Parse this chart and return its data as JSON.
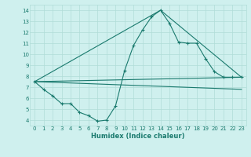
{
  "xlabel": "Humidex (Indice chaleur)",
  "background_color": "#cff0ee",
  "grid_color": "#b0ddd8",
  "line_color": "#1a7a6e",
  "xlim": [
    -0.5,
    23.5
  ],
  "ylim": [
    3.5,
    14.5
  ],
  "xticks": [
    0,
    1,
    2,
    3,
    4,
    5,
    6,
    7,
    8,
    9,
    10,
    11,
    12,
    13,
    14,
    15,
    16,
    17,
    18,
    19,
    20,
    21,
    22,
    23
  ],
  "yticks": [
    4,
    5,
    6,
    7,
    8,
    9,
    10,
    11,
    12,
    13,
    14
  ],
  "series_main": {
    "x": [
      0,
      1,
      2,
      3,
      4,
      5,
      6,
      7,
      8,
      9,
      10,
      11,
      12,
      13,
      14,
      15,
      16,
      17,
      18,
      19,
      20,
      21,
      22,
      23
    ],
    "y": [
      7.5,
      6.8,
      6.2,
      5.5,
      5.5,
      4.7,
      4.4,
      3.9,
      4.0,
      5.3,
      8.5,
      10.8,
      12.2,
      13.4,
      14.0,
      12.8,
      11.1,
      11.0,
      11.0,
      9.6,
      8.4,
      7.9,
      7.9,
      7.9
    ]
  },
  "line_flat": {
    "x": [
      0,
      23
    ],
    "y": [
      7.5,
      7.9
    ]
  },
  "line_triangle": {
    "x": [
      0,
      14,
      23
    ],
    "y": [
      7.5,
      14.0,
      7.9
    ]
  },
  "line_lower": {
    "x": [
      0,
      23
    ],
    "y": [
      7.5,
      6.8
    ]
  }
}
